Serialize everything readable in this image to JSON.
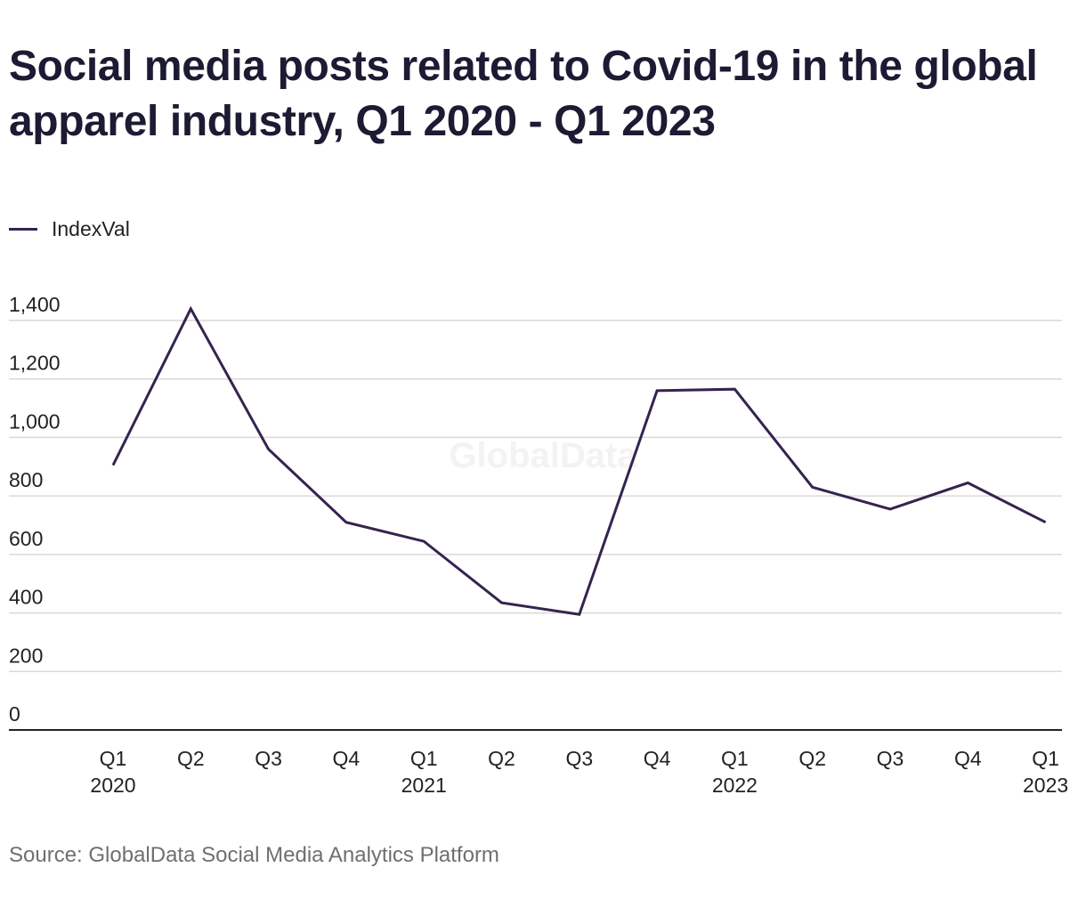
{
  "title": "Social media posts related to Covid-19 in the global apparel industry, Q1 2020 - Q1 2023",
  "source": "Source: GlobalData Social Media Analytics Platform",
  "watermark": "GlobalData",
  "colors": {
    "line": "#35234f",
    "grid": "#d9d9d9",
    "axis": "#222222",
    "text": "#1c1b33",
    "source_text": "#6f6f6f"
  },
  "chart_data": {
    "type": "line",
    "title": "Social media posts related to Covid-19 in the global apparel industry, Q1 2020 - Q1 2023",
    "xlabel": "",
    "ylabel": "",
    "legend_position": "top-left",
    "grid": true,
    "ylim": [
      0,
      1400
    ],
    "yticks": [
      0,
      200,
      400,
      600,
      800,
      1000,
      1200,
      1400
    ],
    "yticklabels": [
      "0",
      "200",
      "400",
      "600",
      "800",
      "1,000",
      "1,200",
      "1,400"
    ],
    "categories": [
      "Q1 2020",
      "Q2 2020",
      "Q3 2020",
      "Q4 2020",
      "Q1 2021",
      "Q2 2021",
      "Q3 2021",
      "Q4 2021",
      "Q1 2022",
      "Q2 2022",
      "Q3 2022",
      "Q4 2022",
      "Q1 2023"
    ],
    "tick_labels": [
      [
        "Q1",
        "2020"
      ],
      [
        "Q2",
        ""
      ],
      [
        "Q3",
        ""
      ],
      [
        "Q4",
        ""
      ],
      [
        "Q1",
        "2021"
      ],
      [
        "Q2",
        ""
      ],
      [
        "Q3",
        ""
      ],
      [
        "Q4",
        ""
      ],
      [
        "Q1",
        "2022"
      ],
      [
        "Q2",
        ""
      ],
      [
        "Q3",
        ""
      ],
      [
        "Q4",
        ""
      ],
      [
        "Q1",
        "2023"
      ]
    ],
    "series": [
      {
        "name": "IndexVal",
        "values": [
          905,
          1440,
          960,
          710,
          645,
          435,
          395,
          1160,
          1165,
          830,
          755,
          845,
          710
        ]
      }
    ]
  }
}
